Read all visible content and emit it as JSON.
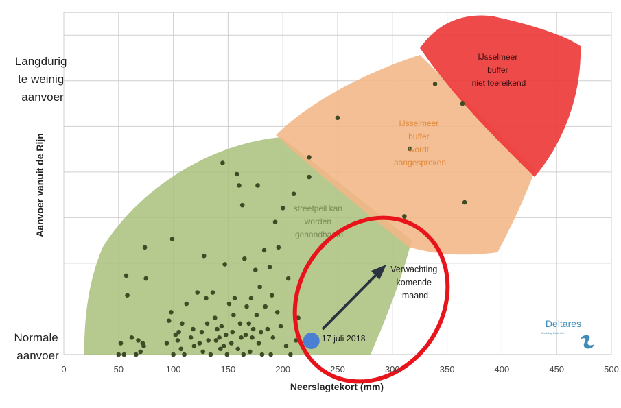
{
  "chart_data": {
    "type": "scatter",
    "xlabel": "Neerslagtekort (mm)",
    "ylabel": "Aanvoer vanuit de Rijn",
    "xlim": [
      0,
      500
    ],
    "x_ticks": [
      0,
      50,
      100,
      150,
      200,
      250,
      300,
      350,
      400,
      450,
      500
    ],
    "y_categories": {
      "top": [
        "Langdurig",
        "te weinig",
        "aanvoer"
      ],
      "bottom": [
        "Normale",
        "aanvoer"
      ]
    },
    "grid": true,
    "regions": [
      {
        "label": [
          "streefpeil kan",
          "worden",
          "gehandhaafd"
        ],
        "color": "#a9bf7b"
      },
      {
        "label": [
          "IJsselmeer",
          "buffer",
          "wordt",
          "aangesproken"
        ],
        "color": "#f2b686"
      },
      {
        "label": [
          "IJsselmeer",
          "buffer",
          "niet toereikend"
        ],
        "color": "#ee3b3b"
      }
    ],
    "current_point": {
      "label": "17 juli 2018",
      "x": 226,
      "color": "#4a7fd1"
    },
    "forecast": {
      "label": [
        "Verwachting",
        "komende",
        "maand"
      ]
    },
    "points_note": "y in relative units: 0 = Normale aanvoer, 1 = Langdurig te weinig aanvoer",
    "points": [
      [
        50,
        0.0
      ],
      [
        52,
        0.04
      ],
      [
        55,
        0.0
      ],
      [
        57,
        0.28
      ],
      [
        58,
        0.21
      ],
      [
        62,
        0.06
      ],
      [
        66,
        0.0
      ],
      [
        68,
        0.05
      ],
      [
        70,
        0.01
      ],
      [
        72,
        0.04
      ],
      [
        73,
        0.03
      ],
      [
        74,
        0.38
      ],
      [
        75,
        0.27
      ],
      [
        94,
        0.04
      ],
      [
        96,
        0.12
      ],
      [
        98,
        0.15
      ],
      [
        99,
        0.41
      ],
      [
        100,
        0.0
      ],
      [
        102,
        0.07
      ],
      [
        104,
        0.05
      ],
      [
        105,
        0.08
      ],
      [
        107,
        0.02
      ],
      [
        108,
        0.11
      ],
      [
        110,
        0.0
      ],
      [
        112,
        0.18
      ],
      [
        116,
        0.06
      ],
      [
        118,
        0.09
      ],
      [
        119,
        0.03
      ],
      [
        122,
        0.22
      ],
      [
        124,
        0.04
      ],
      [
        126,
        0.08
      ],
      [
        127,
        0.01
      ],
      [
        128,
        0.35
      ],
      [
        130,
        0.2
      ],
      [
        131,
        0.11
      ],
      [
        132,
        0.05
      ],
      [
        134,
        0.0
      ],
      [
        136,
        0.22
      ],
      [
        138,
        0.13
      ],
      [
        139,
        0.05
      ],
      [
        140,
        0.09
      ],
      [
        142,
        0.06
      ],
      [
        143,
        0.02
      ],
      [
        144,
        0.1
      ],
      [
        145,
        0.68
      ],
      [
        146,
        0.03
      ],
      [
        147,
        0.32
      ],
      [
        148,
        0.07
      ],
      [
        149,
        0.0
      ],
      [
        151,
        0.18
      ],
      [
        153,
        0.04
      ],
      [
        154,
        0.08
      ],
      [
        155,
        0.14
      ],
      [
        156,
        0.2
      ],
      [
        158,
        0.64
      ],
      [
        159,
        0.02
      ],
      [
        160,
        0.6
      ],
      [
        161,
        0.11
      ],
      [
        162,
        0.06
      ],
      [
        163,
        0.53
      ],
      [
        164,
        0.0
      ],
      [
        165,
        0.34
      ],
      [
        166,
        0.07
      ],
      [
        167,
        0.17
      ],
      [
        169,
        0.11
      ],
      [
        170,
        0.01
      ],
      [
        171,
        0.2
      ],
      [
        172,
        0.06
      ],
      [
        173,
        0.09
      ],
      [
        175,
        0.3
      ],
      [
        176,
        0.14
      ],
      [
        177,
        0.6
      ],
      [
        178,
        0.04
      ],
      [
        179,
        0.24
      ],
      [
        180,
        0.08
      ],
      [
        181,
        0.0
      ],
      [
        183,
        0.37
      ],
      [
        184,
        0.17
      ],
      [
        186,
        0.09
      ],
      [
        188,
        0.31
      ],
      [
        189,
        0.0
      ],
      [
        190,
        0.21
      ],
      [
        191,
        0.06
      ],
      [
        193,
        0.47
      ],
      [
        195,
        0.15
      ],
      [
        196,
        0.38
      ],
      [
        198,
        0.1
      ],
      [
        200,
        0.52
      ],
      [
        203,
        0.03
      ],
      [
        205,
        0.27
      ],
      [
        207,
        0.0
      ],
      [
        210,
        0.57
      ],
      [
        212,
        0.05
      ],
      [
        214,
        0.13
      ],
      [
        224,
        0.7
      ],
      [
        224,
        0.63
      ],
      [
        250,
        0.84
      ],
      [
        311,
        0.49
      ],
      [
        316,
        0.73
      ],
      [
        339,
        0.96
      ],
      [
        364,
        0.89
      ],
      [
        366,
        0.54
      ]
    ]
  },
  "logo": {
    "name": "Deltares",
    "tagline": "Enabling Delta Life"
  },
  "colors": {
    "green_region": "#a9bf7b",
    "orange_region": "#f2b686",
    "red_region": "#ee3b3b",
    "highlight_ellipse": "#e8141b",
    "arrow": "#2a3340",
    "dots": "#3e4b25",
    "region_text_green": "#7a8a56",
    "region_text_orange": "#e08a3c",
    "region_text_red": "#3a0e0e"
  }
}
